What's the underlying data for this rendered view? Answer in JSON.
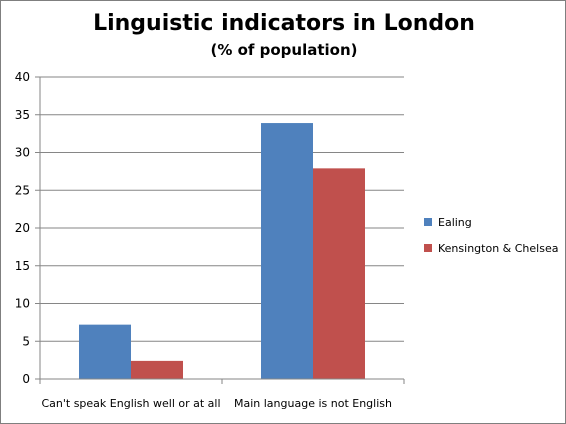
{
  "chart_data": {
    "type": "bar",
    "title": "Linguistic indicators in London",
    "subtitle": "(% of population)",
    "categories": [
      "Can't speak English well or at all",
      "Main language is not English"
    ],
    "series": [
      {
        "name": "Ealing",
        "values": [
          7.2,
          33.9
        ],
        "color": "#4f81bd"
      },
      {
        "name": "Kensington & Chelsea",
        "values": [
          2.4,
          27.9
        ],
        "color": "#c0504d"
      }
    ],
    "ylim": [
      0,
      40
    ],
    "yticks": [
      0,
      5,
      10,
      15,
      20,
      25,
      30,
      35,
      40
    ],
    "grid": true,
    "legend": "right"
  }
}
